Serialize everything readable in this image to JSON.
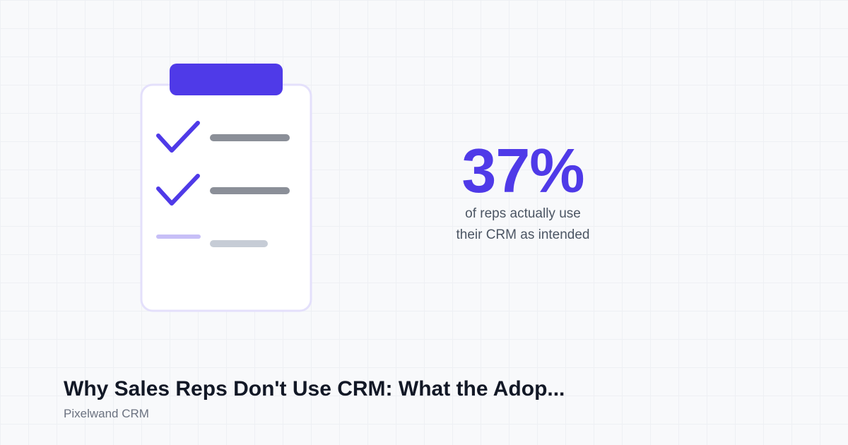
{
  "stat": {
    "value": "37%",
    "caption_line1": "of reps actually use",
    "caption_line2": "their CRM as intended"
  },
  "article": {
    "title": "Why Sales Reps Don't Use CRM: What the Adop...",
    "brand": "Pixelwand CRM"
  },
  "illustration": {
    "icon": "clipboard-checklist-icon",
    "items": [
      {
        "state": "checked",
        "icon": "checkmark-icon"
      },
      {
        "state": "checked",
        "icon": "checkmark-icon"
      },
      {
        "state": "pending",
        "icon": "dash-icon"
      }
    ]
  },
  "colors": {
    "accent": "#4f3ae8",
    "accent_light": "#c7bff7",
    "card_border": "#e4e0fb",
    "line_dark": "#8b8f98",
    "line_light": "#c6ccd6",
    "title": "#121826",
    "muted": "#6b7280"
  }
}
